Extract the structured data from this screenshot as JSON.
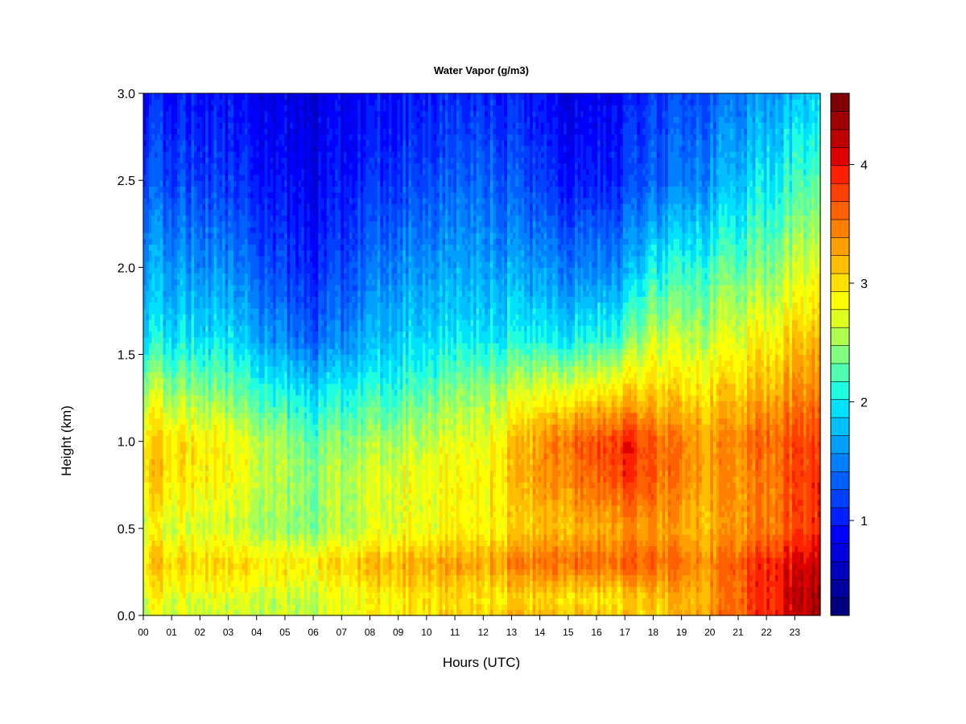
{
  "chart_data": {
    "type": "heatmap",
    "title": "Water Vapor (g/m3)",
    "xlabel": "Hours (UTC)",
    "ylabel": "Height (km)",
    "x_ticks": [
      "00",
      "01",
      "02",
      "03",
      "04",
      "05",
      "06",
      "07",
      "08",
      "09",
      "10",
      "11",
      "12",
      "13",
      "14",
      "15",
      "16",
      "17",
      "18",
      "19",
      "20",
      "21",
      "22",
      "23"
    ],
    "xlim": [
      0,
      23.9
    ],
    "y_ticks": [
      "0.0",
      "0.5",
      "1.0",
      "1.5",
      "2.0",
      "2.5",
      "3.0"
    ],
    "ylim": [
      0,
      3.0
    ],
    "colorbar": {
      "range": [
        0.2,
        4.6
      ],
      "ticks": [
        "1",
        "2",
        "3",
        "4"
      ],
      "levels": 22,
      "colors": [
        "#00007F",
        "#00009F",
        "#0000BF",
        "#0000DF",
        "#0000FF",
        "#0020FF",
        "#0040FF",
        "#0060FF",
        "#0080FF",
        "#00A0FF",
        "#00C0FF",
        "#00E0FF",
        "#20FFDF",
        "#50FFAF",
        "#80FF80",
        "#AFFF50",
        "#DFFF20",
        "#FFFF00",
        "#FFE000",
        "#FFBF00",
        "#FF9F00",
        "#FF8000",
        "#FF6000",
        "#FF4000",
        "#FF2000",
        "#DF0000",
        "#BF0000",
        "#9F0000",
        "#7F0000"
      ]
    },
    "profiles_description_hours": [
      0,
      3,
      6,
      9,
      12,
      15,
      17,
      18,
      20,
      22,
      23.9
    ],
    "profiles": {
      "heights_km": [
        0.0,
        0.1,
        0.3,
        0.5,
        0.8,
        1.0,
        1.3,
        1.6,
        2.0,
        2.5,
        3.0
      ],
      "values_g_m3": [
        [
          2.7,
          2.8,
          3.1,
          2.8,
          3.1,
          3.1,
          2.6,
          2.0,
          1.7,
          1.3,
          1.0
        ],
        [
          2.6,
          2.7,
          3.0,
          2.6,
          2.8,
          2.8,
          2.3,
          1.9,
          1.5,
          1.1,
          0.9
        ],
        [
          2.6,
          2.6,
          2.9,
          2.4,
          2.4,
          2.3,
          1.9,
          1.3,
          1.0,
          0.8,
          0.7
        ],
        [
          3.0,
          3.0,
          3.3,
          2.8,
          2.8,
          2.6,
          2.2,
          1.9,
          1.6,
          1.2,
          1.0
        ],
        [
          3.1,
          3.0,
          3.3,
          2.9,
          2.9,
          2.8,
          2.5,
          2.0,
          1.7,
          1.4,
          1.1
        ],
        [
          3.2,
          3.0,
          3.6,
          3.2,
          3.5,
          3.6,
          2.8,
          2.0,
          1.5,
          1.0,
          0.8
        ],
        [
          3.1,
          3.0,
          3.6,
          3.3,
          3.8,
          3.9,
          3.0,
          2.2,
          1.6,
          1.1,
          0.9
        ],
        [
          3.0,
          3.1,
          3.6,
          3.3,
          3.6,
          3.6,
          3.0,
          2.6,
          2.0,
          1.3,
          1.1
        ],
        [
          3.4,
          3.3,
          3.4,
          3.2,
          3.3,
          3.3,
          3.0,
          2.6,
          2.2,
          1.6,
          1.3
        ],
        [
          3.9,
          3.9,
          3.9,
          3.5,
          3.5,
          3.6,
          3.2,
          2.9,
          2.4,
          2.0,
          1.6
        ],
        [
          4.4,
          4.4,
          4.2,
          3.9,
          3.9,
          3.8,
          3.5,
          3.2,
          2.8,
          2.3,
          1.9
        ]
      ]
    },
    "grid": false
  }
}
